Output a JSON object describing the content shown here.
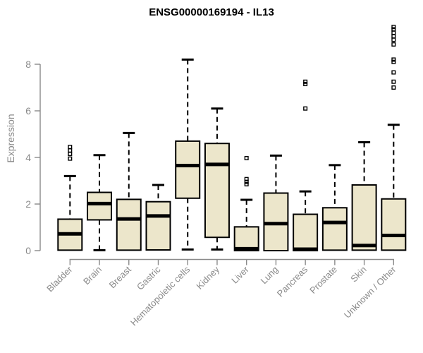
{
  "chart": {
    "title": "ENSG00000169194 - IL13",
    "y_axis_label": "Expression",
    "colors": {
      "box_fill": "#ece6cb",
      "box_border": "#000000",
      "median": "#000000",
      "whisker": "#000000",
      "outlier": "#000000",
      "axis": "#8a8a8a",
      "tick_label": "#8a8a8a",
      "title": "#000000",
      "background": "#ffffff"
    }
  },
  "chart_data": {
    "type": "boxplot",
    "title": "ENSG00000169194 - IL13",
    "xlabel": "",
    "ylabel": "Expression",
    "ylim": [
      0,
      8
    ],
    "y_ticks": [
      0,
      2,
      4,
      6,
      8
    ],
    "grid": false,
    "legend": false,
    "categories": [
      "Bladder",
      "Brain",
      "Breast",
      "Gastric",
      "Hematopoietic cells",
      "Kidney",
      "Liver",
      "Lung",
      "Pancreas",
      "Prostate",
      "Skin",
      "Unknown / Other"
    ],
    "series": [
      {
        "category": "Bladder",
        "whisker_low": 0.02,
        "q1": 0.02,
        "median": 0.72,
        "q3": 1.35,
        "whisker_high": 3.2,
        "outliers": [
          3.95,
          4.15,
          4.3,
          4.45
        ]
      },
      {
        "category": "Brain",
        "whisker_low": 0.02,
        "q1": 1.32,
        "median": 2.02,
        "q3": 2.5,
        "whisker_high": 4.1,
        "outliers": []
      },
      {
        "category": "Breast",
        "whisker_low": 0.02,
        "q1": 0.02,
        "median": 1.36,
        "q3": 2.2,
        "whisker_high": 5.05,
        "outliers": []
      },
      {
        "category": "Gastric",
        "whisker_low": 0.03,
        "q1": 0.03,
        "median": 1.49,
        "q3": 2.1,
        "whisker_high": 2.82,
        "outliers": []
      },
      {
        "category": "Hematopoietic cells",
        "whisker_low": 0.05,
        "q1": 2.25,
        "median": 3.65,
        "q3": 4.7,
        "whisker_high": 8.2,
        "outliers": []
      },
      {
        "category": "Kidney",
        "whisker_low": 0.05,
        "q1": 0.57,
        "median": 3.7,
        "q3": 4.6,
        "whisker_high": 6.1,
        "outliers": []
      },
      {
        "category": "Liver",
        "whisker_low": 0.0,
        "q1": 0.0,
        "median": 0.08,
        "q3": 1.02,
        "whisker_high": 2.18,
        "outliers": [
          2.85,
          2.95,
          3.07,
          3.97
        ]
      },
      {
        "category": "Lung",
        "whisker_low": 0.0,
        "q1": 0.0,
        "median": 1.16,
        "q3": 2.47,
        "whisker_high": 4.08,
        "outliers": []
      },
      {
        "category": "Pancreas",
        "whisker_low": 0.0,
        "q1": 0.0,
        "median": 0.06,
        "q3": 1.56,
        "whisker_high": 2.54,
        "outliers": [
          6.1,
          7.15,
          7.25
        ]
      },
      {
        "category": "Prostate",
        "whisker_low": 0.02,
        "q1": 0.02,
        "median": 1.21,
        "q3": 1.84,
        "whisker_high": 3.67,
        "outliers": []
      },
      {
        "category": "Skin",
        "whisker_low": 0.02,
        "q1": 0.02,
        "median": 0.22,
        "q3": 2.82,
        "whisker_high": 4.65,
        "outliers": []
      },
      {
        "category": "Unknown / Other",
        "whisker_low": 0.02,
        "q1": 0.02,
        "median": 0.65,
        "q3": 2.22,
        "whisker_high": 5.4,
        "outliers": [
          7.0,
          7.25,
          7.65,
          8.1,
          8.2,
          8.85,
          9.05,
          9.2,
          9.35,
          9.5,
          9.6
        ]
      }
    ]
  }
}
